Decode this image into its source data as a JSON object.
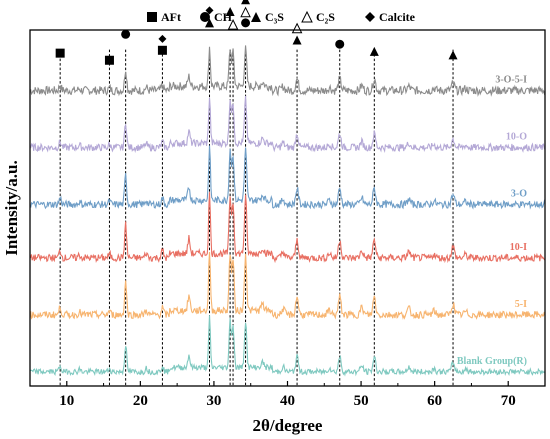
{
  "chart_data": {
    "type": "line",
    "xlabel": "2θ/degree",
    "ylabel": "Intensity/a.u.",
    "xlim": [
      5,
      75
    ],
    "xticks": [
      "10",
      "20",
      "30",
      "40",
      "50",
      "60",
      "70"
    ],
    "tick_values": [
      10,
      20,
      30,
      40,
      50,
      60,
      70
    ],
    "grid": false,
    "y_tick_labels": false,
    "legend": {
      "placement": "top",
      "items": [
        {
          "symbol": "filled-square",
          "label": "AFt"
        },
        {
          "symbol": "filled-circle",
          "label": "CH"
        },
        {
          "symbol": "filled-triangle",
          "label": "C₃S"
        },
        {
          "symbol": "open-triangle",
          "label": "C₂S"
        },
        {
          "symbol": "filled-diamond",
          "label": "Calcite"
        }
      ]
    },
    "reference_lines_2theta": [
      9.1,
      15.8,
      18.0,
      23.0,
      29.4,
      32.2,
      32.6,
      34.3,
      41.3,
      47.1,
      51.8,
      62.5
    ],
    "series": [
      {
        "name": "3-O-5-I",
        "color": "#8c8c8c",
        "baseline": 0.83,
        "peak_scale": 0.11,
        "noise": 0.012
      },
      {
        "name": "10-O",
        "color": "#b4a8d6",
        "baseline": 0.67,
        "peak_scale": 0.13,
        "noise": 0.01
      },
      {
        "name": "3-O",
        "color": "#6f9ec7",
        "baseline": 0.51,
        "peak_scale": 0.15,
        "noise": 0.01
      },
      {
        "name": "10-I",
        "color": "#e86f62",
        "baseline": 0.36,
        "peak_scale": 0.17,
        "noise": 0.01
      },
      {
        "name": "5-I",
        "color": "#f7b46f",
        "baseline": 0.2,
        "peak_scale": 0.17,
        "noise": 0.01
      },
      {
        "name": "Blank Group(R)",
        "color": "#7fc9c0",
        "baseline": 0.04,
        "peak_scale": 0.14,
        "noise": 0.008
      }
    ],
    "peaks": [
      {
        "x": 9.1,
        "h": 0.12,
        "w": 0.15
      },
      {
        "x": 11.7,
        "h": 0.05,
        "w": 0.15
      },
      {
        "x": 15.8,
        "h": 0.06,
        "w": 0.15
      },
      {
        "x": 18.0,
        "h": 0.55,
        "w": 0.14
      },
      {
        "x": 20.8,
        "h": 0.08,
        "w": 0.15
      },
      {
        "x": 23.0,
        "h": 0.12,
        "w": 0.15
      },
      {
        "x": 26.6,
        "h": 0.25,
        "w": 0.15
      },
      {
        "x": 29.4,
        "h": 1.0,
        "w": 0.12
      },
      {
        "x": 32.2,
        "h": 0.95,
        "w": 0.14
      },
      {
        "x": 32.6,
        "h": 0.85,
        "w": 0.14
      },
      {
        "x": 34.3,
        "h": 0.95,
        "w": 0.15
      },
      {
        "x": 36.6,
        "h": 0.1,
        "w": 0.2
      },
      {
        "x": 39.4,
        "h": 0.1,
        "w": 0.2
      },
      {
        "x": 41.3,
        "h": 0.3,
        "w": 0.18
      },
      {
        "x": 45.7,
        "h": 0.08,
        "w": 0.2
      },
      {
        "x": 47.1,
        "h": 0.3,
        "w": 0.18
      },
      {
        "x": 50.1,
        "h": 0.12,
        "w": 0.2
      },
      {
        "x": 51.8,
        "h": 0.3,
        "w": 0.18
      },
      {
        "x": 56.5,
        "h": 0.1,
        "w": 0.2
      },
      {
        "x": 59.9,
        "h": 0.06,
        "w": 0.2
      },
      {
        "x": 62.5,
        "h": 0.18,
        "w": 0.2
      },
      {
        "x": 64.2,
        "h": 0.05,
        "w": 0.2
      }
    ],
    "phase_markers": [
      {
        "symbol": "filled-square",
        "x": 9.1,
        "y": 0.935
      },
      {
        "symbol": "filled-square",
        "x": 15.8,
        "y": 0.915
      },
      {
        "symbol": "filled-circle",
        "x": 18.0,
        "y": 0.988
      },
      {
        "symbol": "filled-diamond",
        "x": 23.0,
        "y": 0.975
      },
      {
        "symbol": "filled-square",
        "x": 23.0,
        "y": 0.943
      },
      {
        "symbol": "filled-diamond",
        "x": 29.4,
        "y": 1.055
      },
      {
        "symbol": "filled-triangle",
        "x": 29.4,
        "y": 1.02
      },
      {
        "symbol": "filled-triangle",
        "x": 32.2,
        "y": 1.052
      },
      {
        "symbol": "open-triangle",
        "x": 32.6,
        "y": 1.015
      },
      {
        "symbol": "filled-triangle",
        "x": 34.3,
        "y": 1.085
      },
      {
        "symbol": "open-triangle",
        "x": 34.3,
        "y": 1.05
      },
      {
        "symbol": "filled-circle",
        "x": 34.3,
        "y": 1.02
      },
      {
        "symbol": "open-triangle",
        "x": 41.3,
        "y": 1.005
      },
      {
        "symbol": "filled-triangle",
        "x": 41.3,
        "y": 0.972
      },
      {
        "symbol": "filled-circle",
        "x": 47.1,
        "y": 0.96
      },
      {
        "symbol": "filled-triangle",
        "x": 51.8,
        "y": 0.94
      },
      {
        "symbol": "filled-triangle",
        "x": 62.5,
        "y": 0.93
      }
    ]
  }
}
